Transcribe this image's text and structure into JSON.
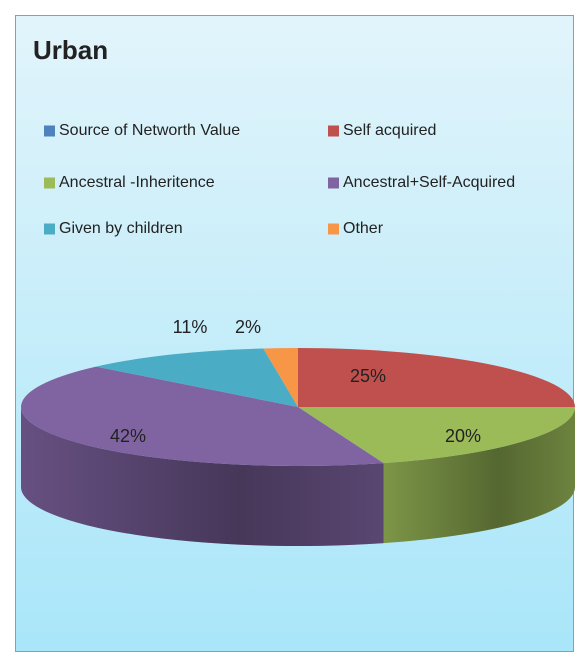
{
  "chart_data": {
    "type": "pie3d",
    "title": "Urban",
    "categories": [
      "Source of Networth Value",
      "Self acquired",
      "Ancestral -Inheritence",
      "Ancestral+Self-Acquired",
      "Given by children",
      "Other"
    ],
    "values": [
      0,
      25,
      20,
      42,
      11,
      2
    ],
    "value_labels": [
      null,
      "25%",
      "20%",
      "42%",
      "11%",
      "2%"
    ],
    "colors": [
      "#4f81bd",
      "#c0504d",
      "#9bbb59",
      "#8064a2",
      "#4bacc6",
      "#f79646"
    ],
    "legend": "top"
  }
}
